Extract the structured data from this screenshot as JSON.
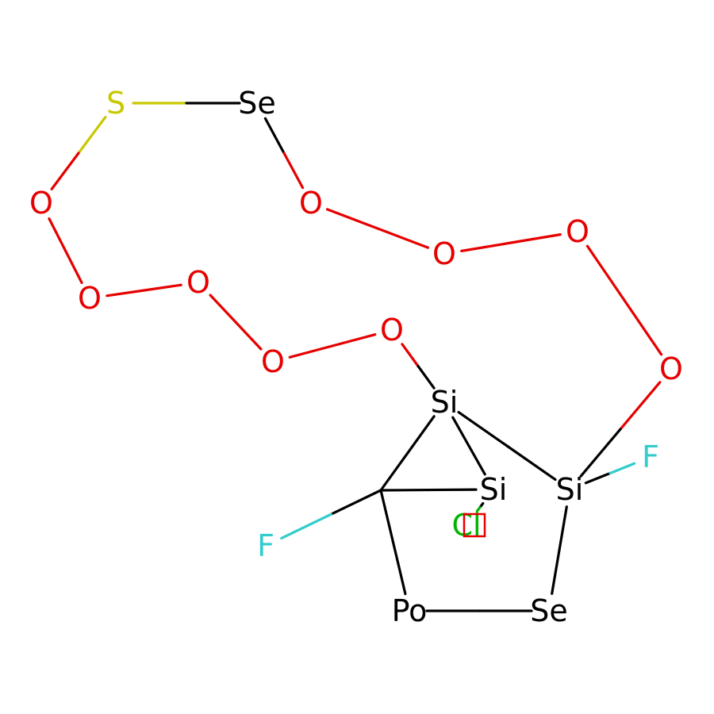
{
  "diagram": {
    "type": "molecule-structure",
    "colors": {
      "C": "#000000",
      "Si": "#000000",
      "Se": "#000000",
      "Po": "#000000",
      "S": "#c8c800",
      "O": "#e60000",
      "F": "#33cccc",
      "Cl": "#00b400",
      "unknown": "#e60000"
    },
    "atoms": [
      {
        "id": "a0",
        "label": "S",
        "element": "S"
      },
      {
        "id": "a1",
        "label": "Se",
        "element": "Se"
      },
      {
        "id": "a2",
        "label": "O",
        "element": "O"
      },
      {
        "id": "a3",
        "label": "O",
        "element": "O"
      },
      {
        "id": "a4",
        "label": "O",
        "element": "O"
      },
      {
        "id": "a5",
        "label": "O",
        "element": "O"
      },
      {
        "id": "a6",
        "label": "O",
        "element": "O"
      },
      {
        "id": "a7",
        "label": "O",
        "element": "O"
      },
      {
        "id": "a8",
        "label": "O",
        "element": "O"
      },
      {
        "id": "a9",
        "label": "O",
        "element": "O"
      },
      {
        "id": "a10",
        "label": "O",
        "element": "O"
      },
      {
        "id": "a11",
        "label": "Si",
        "element": "Si"
      },
      {
        "id": "a12",
        "label": "Si",
        "element": "Si"
      },
      {
        "id": "a13",
        "label": "Si",
        "element": "Si"
      },
      {
        "id": "a14",
        "label": "F",
        "element": "F"
      },
      {
        "id": "a15",
        "label": "F",
        "element": "F"
      },
      {
        "id": "a16",
        "label": "Po",
        "element": "Po"
      },
      {
        "id": "a17",
        "label": "Se",
        "element": "Se"
      },
      {
        "id": "a18",
        "label": "Cl",
        "element": "Cl"
      },
      {
        "id": "c1",
        "label": "",
        "element": "C"
      }
    ],
    "bonds": [
      {
        "from": "a0",
        "to": "a1"
      },
      {
        "from": "a0",
        "to": "a2"
      },
      {
        "from": "a1",
        "to": "a3"
      },
      {
        "from": "a2",
        "to": "a4"
      },
      {
        "from": "a3",
        "to": "a5"
      },
      {
        "from": "a4",
        "to": "a6"
      },
      {
        "from": "a5",
        "to": "a7"
      },
      {
        "from": "a6",
        "to": "a8"
      },
      {
        "from": "a7",
        "to": "a9"
      },
      {
        "from": "a8",
        "to": "a10"
      },
      {
        "from": "a10",
        "to": "a11"
      },
      {
        "from": "a9",
        "to": "a13"
      },
      {
        "from": "a11",
        "to": "a13"
      },
      {
        "from": "a11",
        "to": "a12"
      },
      {
        "from": "a11",
        "to": "c1"
      },
      {
        "from": "c1",
        "to": "a12"
      },
      {
        "from": "c1",
        "to": "a14"
      },
      {
        "from": "c1",
        "to": "a16"
      },
      {
        "from": "a16",
        "to": "a17"
      },
      {
        "from": "a17",
        "to": "a13"
      },
      {
        "from": "a13",
        "to": "a15"
      },
      {
        "from": "a12",
        "to": "a18"
      }
    ]
  }
}
